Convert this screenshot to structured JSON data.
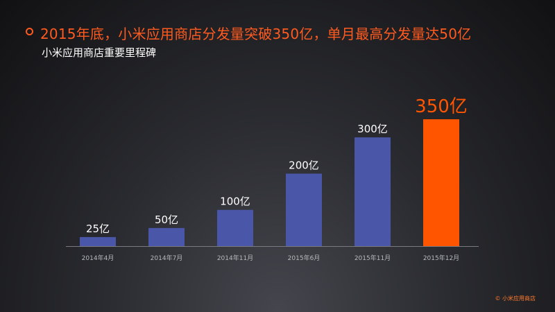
{
  "title": "2015年底，小米应用商店分发量突破350亿，单月最高分发量达50亿",
  "subtitle": "小米应用商店重要里程碑",
  "footer": "© 小米应用商店",
  "colors": {
    "bar": "#4a56a8",
    "highlight": "#ff5500",
    "title": "#ff5a1f"
  },
  "chart_data": {
    "type": "bar",
    "categories": [
      "2014年4月",
      "2014年7月",
      "2014年11月",
      "2015年6月",
      "2015年11月",
      "2015年12月"
    ],
    "values": [
      25,
      50,
      100,
      200,
      300,
      350
    ],
    "data_labels": [
      "25亿",
      "50亿",
      "100亿",
      "200亿",
      "300亿",
      "350亿"
    ],
    "highlight_index": 5,
    "unit": "亿",
    "ylim": [
      0,
      350
    ],
    "grid": false,
    "legend": "none"
  }
}
